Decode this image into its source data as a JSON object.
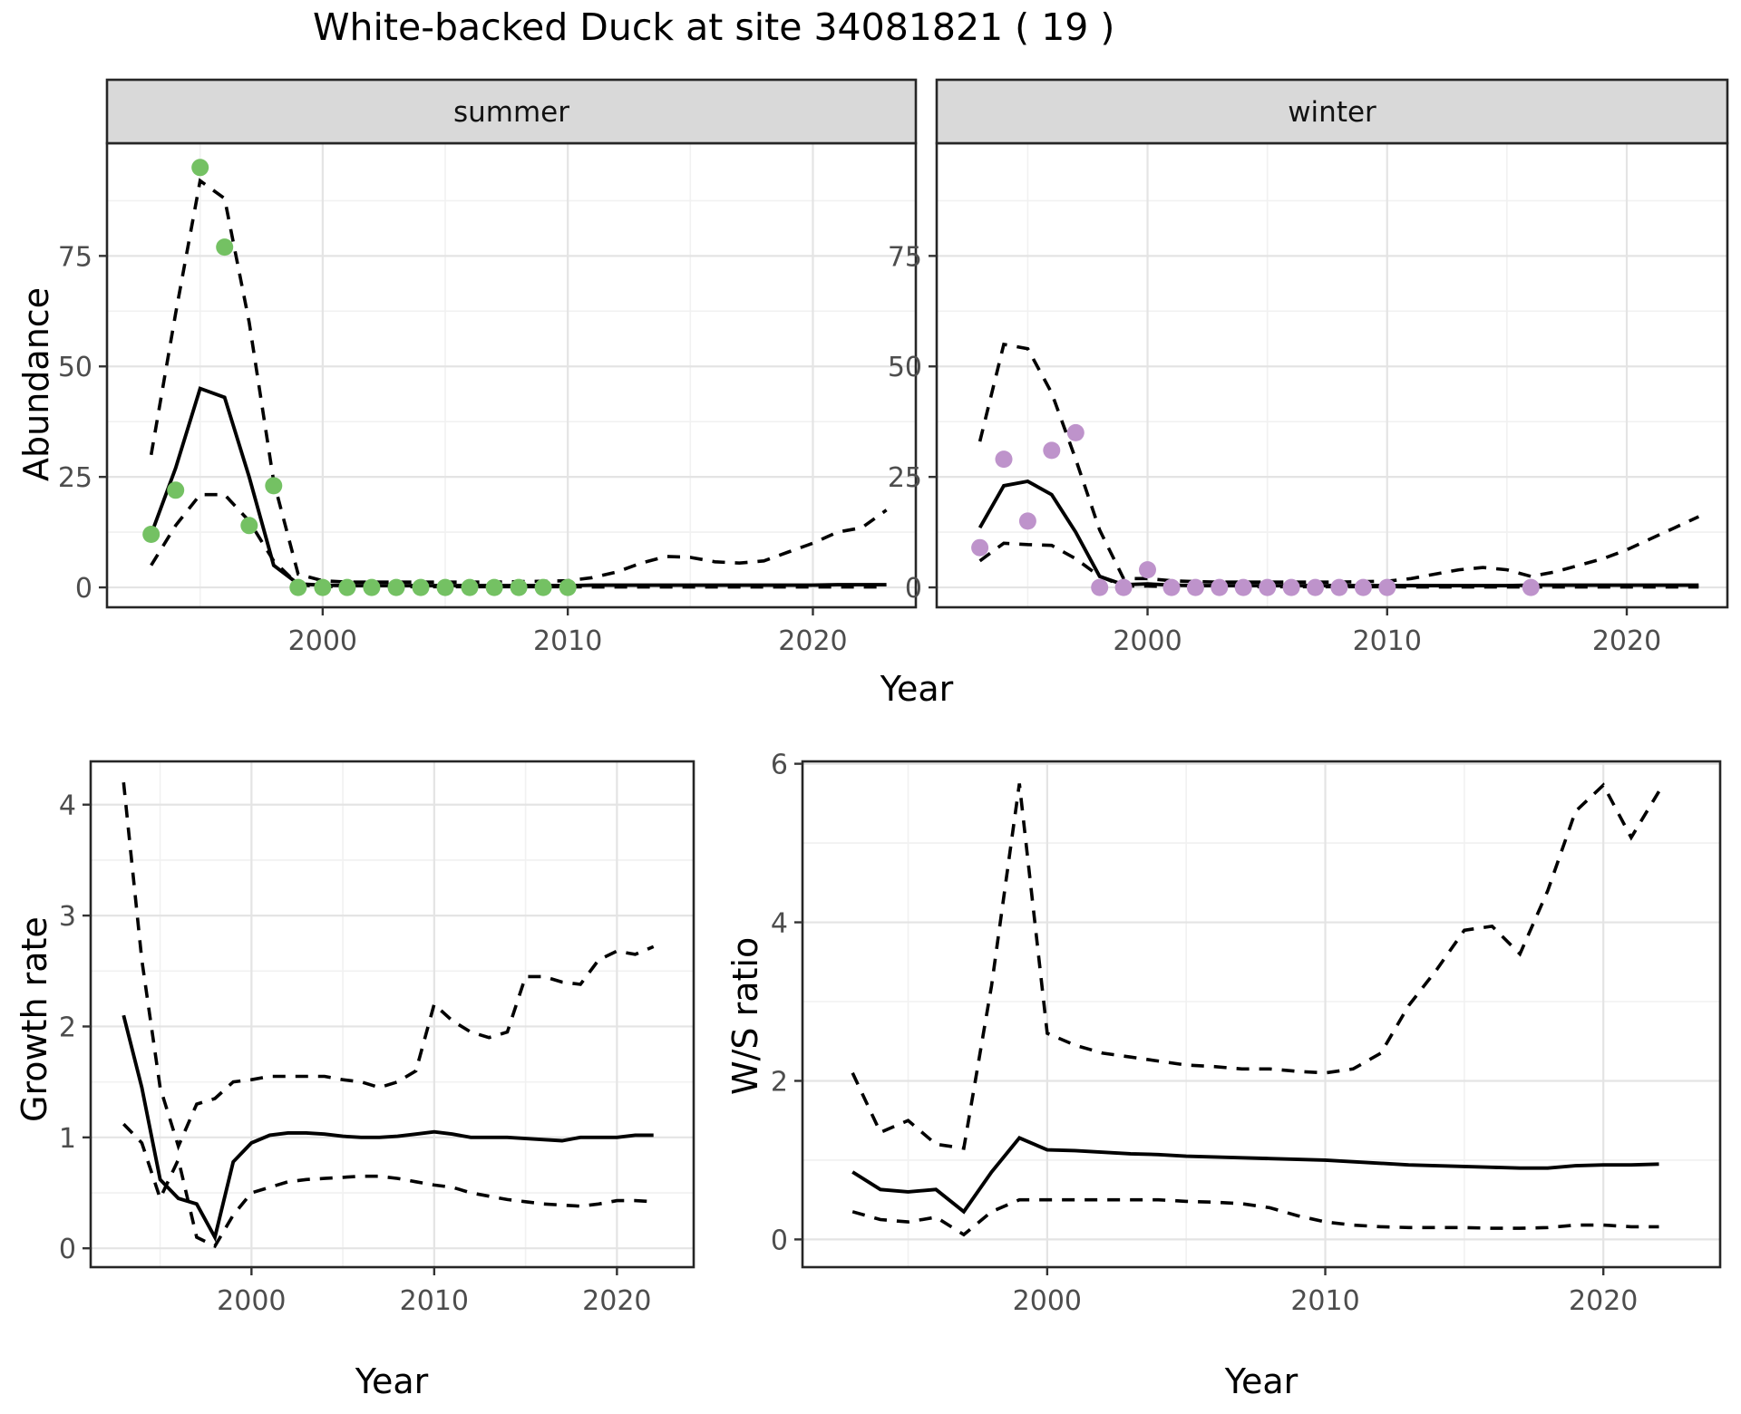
{
  "title": "White-backed Duck at site 34081821 ( 19 )",
  "colors": {
    "summer_point": "#74C163",
    "winter_point": "#BE93CB",
    "strip_bg": "#D9D9D9",
    "panel_border": "#262626",
    "grid_major": "#E4E4E4",
    "grid_minor": "#F1F1F1",
    "tick_label": "#4D4D4D",
    "line": "#000000"
  },
  "chart_data": [
    {
      "type": "line",
      "facet_label": "summer",
      "xlabel": "Year",
      "ylabel": "Abundance",
      "xlim": [
        1991.2,
        2024.2
      ],
      "ylim": [
        -4.5,
        100.5
      ],
      "x_ticks": [
        2000,
        2010,
        2020
      ],
      "x_minor": [
        1995,
        2005,
        2015
      ],
      "y_ticks": [
        0,
        25,
        50,
        75
      ],
      "y_minor": [
        12.5,
        37.5,
        62.5,
        87.5
      ],
      "years": [
        1993,
        1994,
        1995,
        1996,
        1997,
        1998,
        1999,
        2000,
        2001,
        2002,
        2003,
        2004,
        2005,
        2006,
        2007,
        2008,
        2009,
        2010,
        2011,
        2012,
        2013,
        2014,
        2015,
        2016,
        2017,
        2018,
        2019,
        2020,
        2021,
        2022,
        2023
      ],
      "series": [
        {
          "name": "mean",
          "style": "solid",
          "values": [
            12,
            27,
            45,
            43,
            25,
            5,
            0.8,
            0.5,
            0.4,
            0.4,
            0.4,
            0.4,
            0.4,
            0.4,
            0.4,
            0.4,
            0.4,
            0.4,
            0.5,
            0.5,
            0.5,
            0.5,
            0.5,
            0.5,
            0.5,
            0.5,
            0.5,
            0.5,
            0.6,
            0.6,
            0.6
          ]
        },
        {
          "name": "upper_ci",
          "style": "dashed",
          "values": [
            30,
            62,
            92,
            88,
            60,
            24,
            3,
            1.5,
            1.2,
            1.2,
            1.2,
            1.2,
            1.2,
            1.2,
            1.2,
            1.3,
            1.4,
            1.5,
            2.2,
            3.5,
            5.5,
            7,
            6.8,
            5.8,
            5.5,
            6,
            8,
            10,
            12.5,
            13.5,
            17.5
          ]
        },
        {
          "name": "lower_ci",
          "style": "dashed",
          "values": [
            5,
            14,
            21,
            21,
            15,
            6,
            0.6,
            0.2,
            0.15,
            0.15,
            0.15,
            0.15,
            0.15,
            0.15,
            0.15,
            0.15,
            0.15,
            0.15,
            0.1,
            0.1,
            0.1,
            0.1,
            0.1,
            0.1,
            0.1,
            0.1,
            0.1,
            0.1,
            0.1,
            0.1,
            0.1
          ]
        }
      ],
      "points": {
        "name": "observed",
        "color_key": "summer_point",
        "data": [
          [
            1993,
            12
          ],
          [
            1994,
            22
          ],
          [
            1995,
            95
          ],
          [
            1996,
            77
          ],
          [
            1997,
            14
          ],
          [
            1998,
            23
          ],
          [
            1999,
            0
          ],
          [
            2000,
            0
          ],
          [
            2001,
            0
          ],
          [
            2002,
            0
          ],
          [
            2003,
            0
          ],
          [
            2004,
            0
          ],
          [
            2005,
            0
          ],
          [
            2006,
            0
          ],
          [
            2007,
            0
          ],
          [
            2008,
            0
          ],
          [
            2009,
            0
          ],
          [
            2010,
            0
          ]
        ]
      }
    },
    {
      "type": "line",
      "facet_label": "winter",
      "xlabel": "Year",
      "ylabel": "Abundance",
      "xlim": [
        1991.2,
        2024.2
      ],
      "ylim": [
        -4.5,
        100.5
      ],
      "x_ticks": [
        2000,
        2010,
        2020
      ],
      "x_minor": [
        1995,
        2005,
        2015
      ],
      "y_ticks": [
        0,
        25,
        50,
        75
      ],
      "y_minor": [
        12.5,
        37.5,
        62.5,
        87.5
      ],
      "years": [
        1993,
        1994,
        1995,
        1996,
        1997,
        1998,
        1999,
        2000,
        2001,
        2002,
        2003,
        2004,
        2005,
        2006,
        2007,
        2008,
        2009,
        2010,
        2011,
        2012,
        2013,
        2014,
        2015,
        2016,
        2017,
        2018,
        2019,
        2020,
        2021,
        2022,
        2023
      ],
      "series": [
        {
          "name": "mean",
          "style": "solid",
          "values": [
            13.5,
            23,
            24,
            21,
            12.5,
            2.5,
            0.6,
            0.8,
            0.5,
            0.4,
            0.4,
            0.4,
            0.4,
            0.4,
            0.4,
            0.4,
            0.4,
            0.4,
            0.4,
            0.4,
            0.4,
            0.4,
            0.4,
            0.5,
            0.5,
            0.5,
            0.5,
            0.5,
            0.5,
            0.5,
            0.5
          ]
        },
        {
          "name": "upper_ci",
          "style": "dashed",
          "values": [
            33,
            55,
            54,
            44,
            29,
            13,
            2,
            2,
            1.5,
            1.3,
            1.2,
            1.2,
            1.2,
            1.2,
            1.2,
            1.2,
            1.3,
            1.4,
            2,
            3,
            4,
            4.5,
            4,
            2.5,
            3.5,
            5,
            6.5,
            8.5,
            11,
            13.5,
            16
          ]
        },
        {
          "name": "lower_ci",
          "style": "dashed",
          "values": [
            6,
            10,
            9.7,
            9.5,
            6.5,
            2.5,
            0.3,
            0.3,
            0.2,
            0.15,
            0.15,
            0.15,
            0.15,
            0.15,
            0.15,
            0.15,
            0.15,
            0.15,
            0.1,
            0.1,
            0.1,
            0.1,
            0.1,
            0.1,
            0.1,
            0.1,
            0.1,
            0.1,
            0.1,
            0.1,
            0.1
          ]
        }
      ],
      "points": {
        "name": "observed",
        "color_key": "winter_point",
        "data": [
          [
            1993,
            9
          ],
          [
            1994,
            29
          ],
          [
            1995,
            15
          ],
          [
            1996,
            31
          ],
          [
            1997,
            35
          ],
          [
            1998,
            0
          ],
          [
            1999,
            0
          ],
          [
            2000,
            4
          ],
          [
            2001,
            0
          ],
          [
            2002,
            0
          ],
          [
            2003,
            0
          ],
          [
            2004,
            0
          ],
          [
            2005,
            0
          ],
          [
            2006,
            0
          ],
          [
            2007,
            0
          ],
          [
            2008,
            0
          ],
          [
            2009,
            0
          ],
          [
            2010,
            0
          ],
          [
            2016,
            0
          ]
        ]
      }
    },
    {
      "type": "line",
      "facet_label": "",
      "xlabel": "Year",
      "ylabel": "Growth rate",
      "xlim": [
        1991.2,
        2024.2
      ],
      "ylim": [
        -0.17,
        4.39
      ],
      "x_ticks": [
        2000,
        2010,
        2020
      ],
      "x_minor": [
        1995,
        2005,
        2015
      ],
      "y_ticks": [
        0,
        1,
        2,
        3,
        4
      ],
      "y_minor": [
        0.5,
        1.5,
        2.5,
        3.5
      ],
      "years": [
        1993,
        1994,
        1995,
        1996,
        1997,
        1998,
        1999,
        2000,
        2001,
        2002,
        2003,
        2004,
        2005,
        2006,
        2007,
        2008,
        2009,
        2010,
        2011,
        2012,
        2013,
        2014,
        2015,
        2016,
        2017,
        2018,
        2019,
        2020,
        2021,
        2022
      ],
      "series": [
        {
          "name": "mean",
          "style": "solid",
          "values": [
            2.1,
            1.45,
            0.62,
            0.45,
            0.4,
            0.1,
            0.78,
            0.95,
            1.02,
            1.04,
            1.04,
            1.03,
            1.01,
            1.0,
            1.0,
            1.01,
            1.03,
            1.05,
            1.03,
            1.0,
            1.0,
            1.0,
            0.99,
            0.98,
            0.97,
            1.0,
            1.0,
            1.0,
            1.02,
            1.02
          ]
        },
        {
          "name": "upper_ci",
          "style": "dashed",
          "values": [
            4.2,
            2.6,
            1.45,
            0.92,
            1.3,
            1.35,
            1.5,
            1.52,
            1.55,
            1.55,
            1.55,
            1.55,
            1.52,
            1.5,
            1.45,
            1.5,
            1.6,
            2.2,
            2.05,
            1.95,
            1.9,
            1.95,
            2.45,
            2.45,
            2.4,
            2.38,
            2.6,
            2.68,
            2.65,
            2.72
          ]
        },
        {
          "name": "lower_ci",
          "style": "dashed",
          "values": [
            1.12,
            0.95,
            0.45,
            0.8,
            0.1,
            0.02,
            0.3,
            0.5,
            0.55,
            0.6,
            0.62,
            0.63,
            0.64,
            0.65,
            0.65,
            0.63,
            0.6,
            0.57,
            0.55,
            0.5,
            0.47,
            0.44,
            0.42,
            0.4,
            0.39,
            0.38,
            0.4,
            0.43,
            0.43,
            0.42
          ]
        }
      ],
      "points": null
    },
    {
      "type": "line",
      "facet_label": "",
      "xlabel": "Year",
      "ylabel": "W/S ratio",
      "xlim": [
        1991.2,
        2024.2
      ],
      "ylim": [
        -0.35,
        6.03
      ],
      "x_ticks": [
        2000,
        2010,
        2020
      ],
      "x_minor": [
        1995,
        2005,
        2015
      ],
      "y_ticks": [
        0,
        2,
        4,
        6
      ],
      "y_minor": [
        1,
        3,
        5
      ],
      "years": [
        1993,
        1994,
        1995,
        1996,
        1997,
        1998,
        1999,
        2000,
        2001,
        2002,
        2003,
        2004,
        2005,
        2006,
        2007,
        2008,
        2009,
        2010,
        2011,
        2012,
        2013,
        2014,
        2015,
        2016,
        2017,
        2018,
        2019,
        2020,
        2021,
        2022
      ],
      "series": [
        {
          "name": "mean",
          "style": "solid",
          "values": [
            0.85,
            0.63,
            0.6,
            0.63,
            0.35,
            0.85,
            1.28,
            1.13,
            1.12,
            1.1,
            1.08,
            1.07,
            1.05,
            1.04,
            1.03,
            1.02,
            1.01,
            1.0,
            0.98,
            0.96,
            0.94,
            0.93,
            0.92,
            0.91,
            0.9,
            0.9,
            0.93,
            0.94,
            0.94,
            0.95
          ]
        },
        {
          "name": "upper_ci",
          "style": "dashed",
          "values": [
            2.1,
            1.35,
            1.5,
            1.2,
            1.15,
            3.2,
            5.75,
            2.6,
            2.45,
            2.35,
            2.3,
            2.25,
            2.2,
            2.18,
            2.15,
            2.15,
            2.12,
            2.1,
            2.15,
            2.35,
            2.95,
            3.4,
            3.9,
            3.95,
            3.6,
            4.4,
            5.4,
            5.73,
            5.07,
            5.65
          ]
        },
        {
          "name": "lower_ci",
          "style": "dashed",
          "values": [
            0.35,
            0.25,
            0.22,
            0.28,
            0.06,
            0.35,
            0.5,
            0.5,
            0.5,
            0.5,
            0.5,
            0.5,
            0.48,
            0.47,
            0.45,
            0.4,
            0.3,
            0.22,
            0.18,
            0.16,
            0.15,
            0.15,
            0.15,
            0.14,
            0.14,
            0.15,
            0.18,
            0.18,
            0.16,
            0.16
          ]
        }
      ],
      "points": null
    }
  ]
}
